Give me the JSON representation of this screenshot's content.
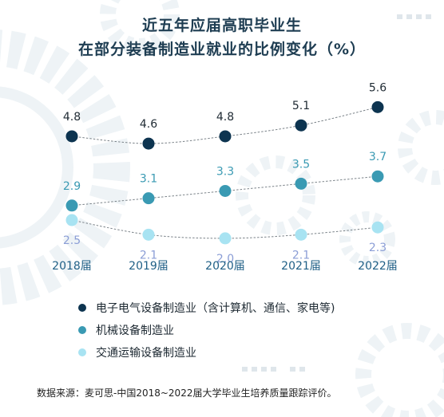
{
  "title_line1": "近五年应届高职毕业生",
  "title_line2": "在部分装备制造业就业的比例变化（%）",
  "source": "数据来源：麦可思-中国2018~2022届大学毕业生培养质量跟踪评价。",
  "colors": {
    "title": "#1e3d52",
    "series_dark": "#0d3450",
    "series_mid": "#3a9ab3",
    "series_light": "#a8e3f2",
    "label_light": "#8b9ed6",
    "axis_label": "#1f5f86"
  },
  "legend": [
    {
      "label": "电子电气设备制造业（含计算机、通信、家电等)",
      "icon": "circle-dark"
    },
    {
      "label": "机械设备制造业",
      "icon": "circle-mid"
    },
    {
      "label": "交通运输设备制造业",
      "icon": "circle-light"
    }
  ],
  "chart_data": {
    "type": "line",
    "title": "近五年应届高职毕业生在部分装备制造业就业的比例变化（%）",
    "x": [
      "2018届",
      "2019届",
      "2020届",
      "2021届",
      "2022届"
    ],
    "series": [
      {
        "name": "电子电气设备制造业（含计算机、通信、家电等)",
        "values": [
          4.8,
          4.6,
          4.8,
          5.1,
          5.6
        ]
      },
      {
        "name": "机械设备制造业",
        "values": [
          2.9,
          3.1,
          3.3,
          3.5,
          3.7
        ]
      },
      {
        "name": "交通运输设备制造业",
        "values": [
          2.5,
          2.1,
          2.0,
          2.1,
          2.3
        ]
      }
    ],
    "grid": false,
    "legend_position": "bottom"
  }
}
